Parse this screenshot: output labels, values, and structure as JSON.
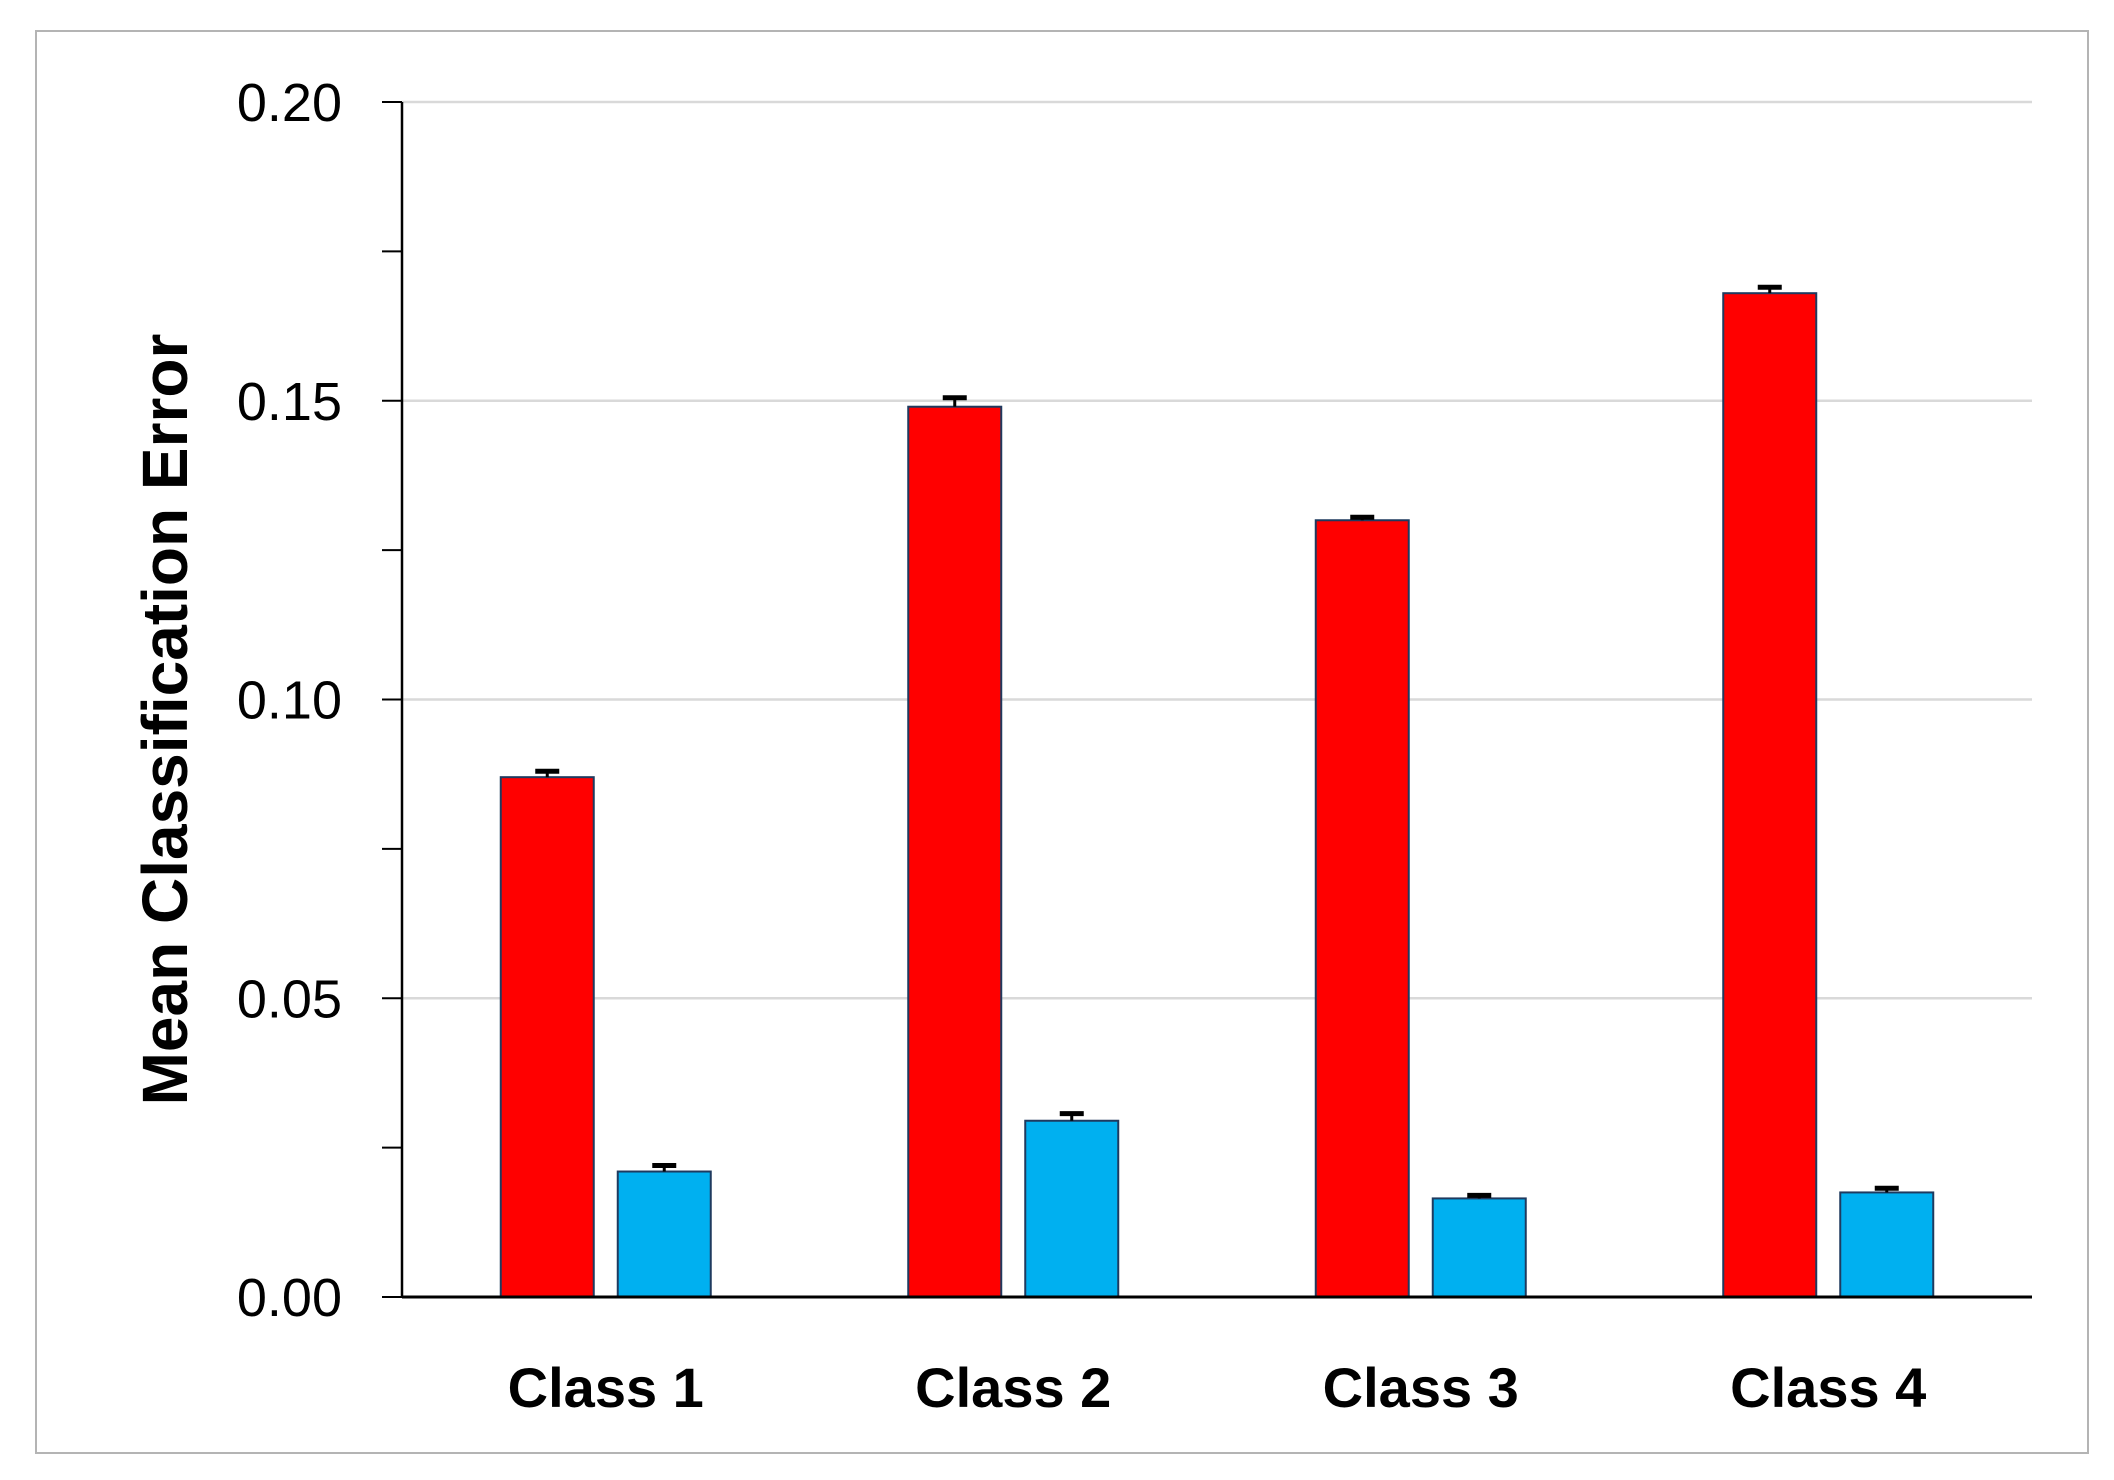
{
  "chart_data": {
    "type": "bar",
    "title": "",
    "xlabel": "",
    "ylabel": "Mean Classification Error",
    "categories": [
      "Class 1",
      "Class 2",
      "Class 3",
      "Class 4"
    ],
    "ylim": [
      0,
      0.2
    ],
    "yticks": [
      "0.00",
      "0.05",
      "0.10",
      "0.15",
      "0.20"
    ],
    "grid": "horizontal",
    "legend": "none",
    "series": [
      {
        "color": "#ff0000",
        "values": [
          0.087,
          0.149,
          0.13,
          0.168
        ],
        "errors": [
          0.001,
          0.0015,
          0.0005,
          0.001
        ]
      },
      {
        "color": "#00b0f0",
        "values": [
          0.021,
          0.0295,
          0.0165,
          0.0175
        ],
        "errors": [
          0.001,
          0.0012,
          0.0005,
          0.0007
        ]
      }
    ]
  }
}
